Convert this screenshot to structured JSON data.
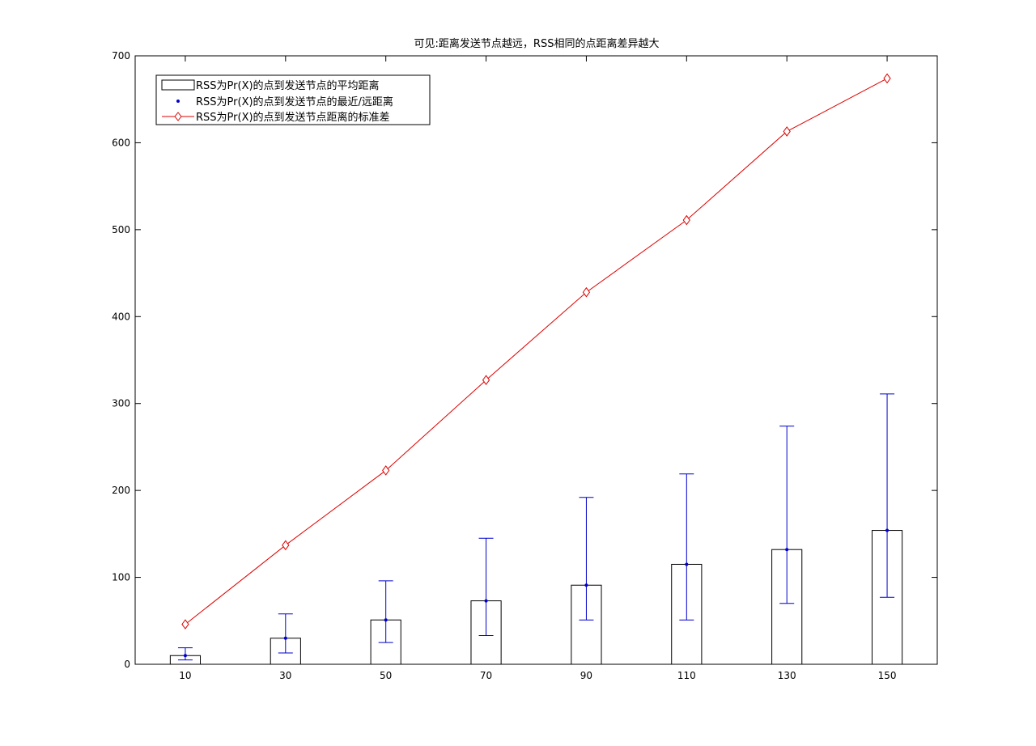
{
  "chart_data": {
    "type": "bar",
    "title": "可见:距离发送节点越远，RSS相同的点距离差异越大",
    "xlabel": "",
    "ylabel": "",
    "x": [
      10,
      30,
      50,
      70,
      90,
      110,
      130,
      150
    ],
    "ylim": [
      0,
      700
    ],
    "yticks": [
      0,
      100,
      200,
      300,
      400,
      500,
      600,
      700
    ],
    "grid": false,
    "legend_position": "top-left",
    "colors": {
      "bars": "#000000",
      "errorbars": "#0000cc",
      "line": "#e00000"
    },
    "series": [
      {
        "name": "RSS为Pr(X)的点到发送节点的平均距离",
        "kind": "bar",
        "values": [
          10,
          30,
          51,
          73,
          91,
          115,
          132,
          154
        ]
      },
      {
        "name": "RSS为Pr(X)的点到发送节点的最近/远距离",
        "kind": "errorbar",
        "center": [
          10,
          30,
          51,
          73,
          91,
          115,
          132,
          154
        ],
        "min": [
          5,
          13,
          25,
          33,
          51,
          51,
          70,
          77
        ],
        "max": [
          19,
          58,
          96,
          145,
          192,
          219,
          274,
          311
        ]
      },
      {
        "name": "RSS为Pr(X)的点到发送节点距离的标准差",
        "kind": "line",
        "values": [
          46,
          137,
          223,
          327,
          428,
          511,
          613,
          674
        ]
      }
    ]
  }
}
